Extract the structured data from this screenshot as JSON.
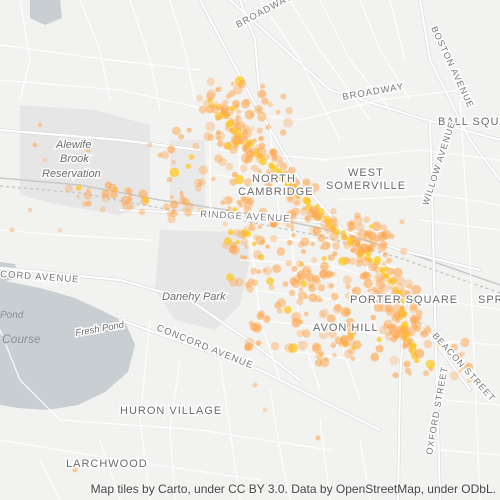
{
  "map": {
    "labels": {
      "broadway_n": "BROADWAY",
      "broadway_e": "BROADWAY",
      "boston_avenue": "BOSTON AVENUE",
      "ball_square": "BALL SQUARE",
      "alewife_1": "Alewife",
      "alewife_2": "Brook",
      "alewife_3": "Reservation",
      "north_cambridge_1": "NORTH",
      "north_cambridge_2": "CAMBRIDGE",
      "west_somerville_1": "WEST",
      "west_somerville_2": "SOMERVILLE",
      "willow_avenue": "WILLOW AVENUE",
      "rindge_avenue": "RINDGE AVENUE",
      "concord_avenue_w": "CORD AVENUE",
      "danehy_park": "Danehy Park",
      "porter_square": "PORTER SQUARE",
      "spr": "SPR",
      "pond": "Pond",
      "fresh_pond": "Fresh Pond",
      "course": "Course",
      "concord_avenue": "CONCORD AVENUE",
      "avon_hill": "AVON HILL",
      "beacon_street": "BEACON STREET",
      "huron_village": "HURON VILLAGE",
      "oxford_street": "OXFORD STREET",
      "larchwood": "LARCHWOOD"
    },
    "attribution": "Map tiles by Carto, under CC BY 3.0. Data by OpenStreetMap, under ODbL.",
    "colors": {
      "background": "#f2f2f0",
      "street": "#ffffff",
      "street_casing": "#d9d9d9",
      "water": "#c9ced3",
      "park": "#e6e6e6",
      "point": "#ffa64d",
      "point_core": "#ffc820"
    }
  }
}
